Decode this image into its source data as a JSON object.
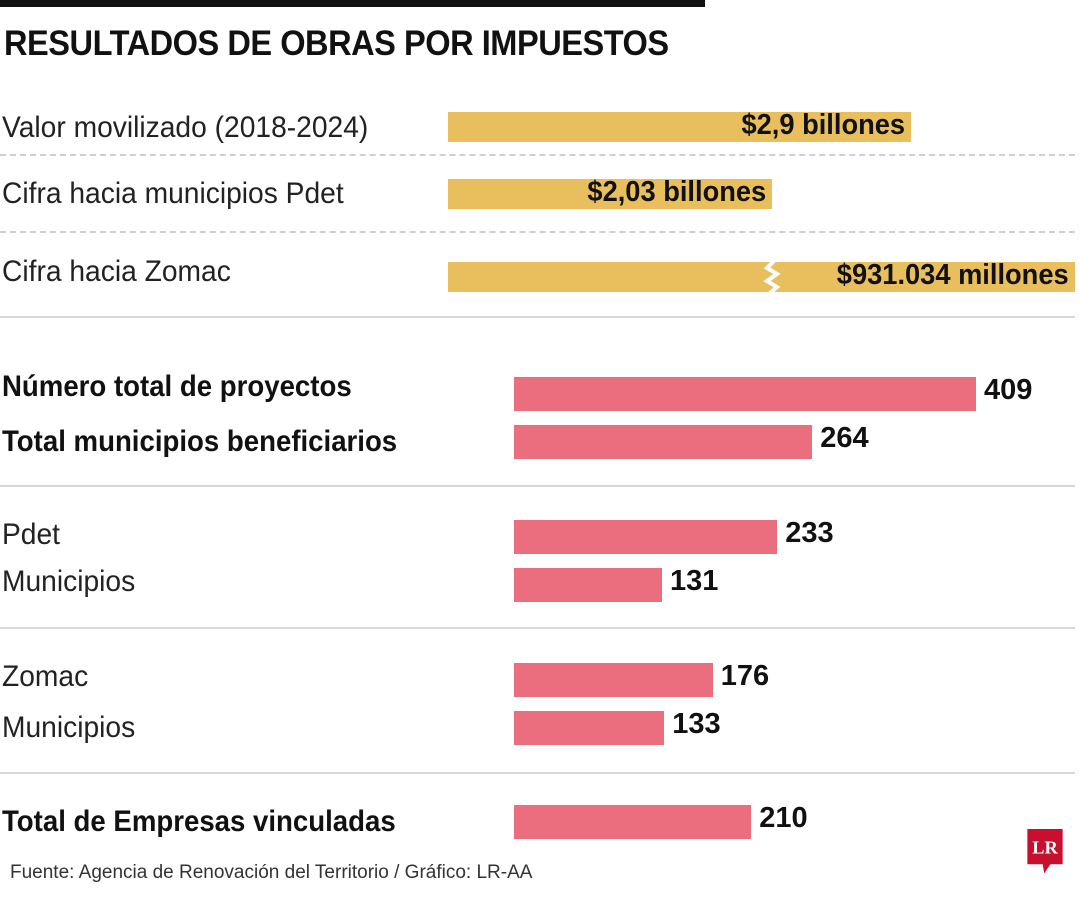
{
  "title": "RESULTADOS DE OBRAS POR IMPUESTOS",
  "source": "Fuente:  Agencia de Renovación del Territorio / Gráfico: LR-AA",
  "logo_text": "LR",
  "colors": {
    "gold": "#e8bf5c",
    "pink": "#ea6e7e",
    "logo_red": "#c8102e"
  },
  "chart_data": [
    {
      "type": "bar",
      "orientation": "horizontal",
      "unit": "billones de pesos",
      "axis_break": "Cifra hacia Zomac (bar truncated with zigzag break)",
      "categories": [
        "Valor movilizado (2018-2024)",
        "Cifra hacia municipios Pdet",
        "Cifra hacia Zomac"
      ],
      "values": [
        2.9,
        2.03,
        0.931034
      ],
      "data_labels": [
        "$2,9 billones",
        "$2,03 billones",
        "$931.034 millones"
      ]
    },
    {
      "type": "bar",
      "orientation": "horizontal",
      "categories": [
        "Número total de proyectos",
        "Total municipios beneficiarios",
        "Pdet",
        "Municipios",
        "Zomac",
        "Municipios",
        "Total de Empresas vinculadas"
      ],
      "values": [
        409,
        264,
        233,
        131,
        176,
        133,
        210
      ],
      "data_labels": [
        "409",
        "264",
        "233",
        "131",
        "176",
        "133",
        "210"
      ],
      "bold_categories": [
        "Número total de proyectos",
        "Total municipios beneficiarios",
        "Total de Empresas vinculadas"
      ],
      "xlim": [
        0,
        409
      ]
    }
  ]
}
